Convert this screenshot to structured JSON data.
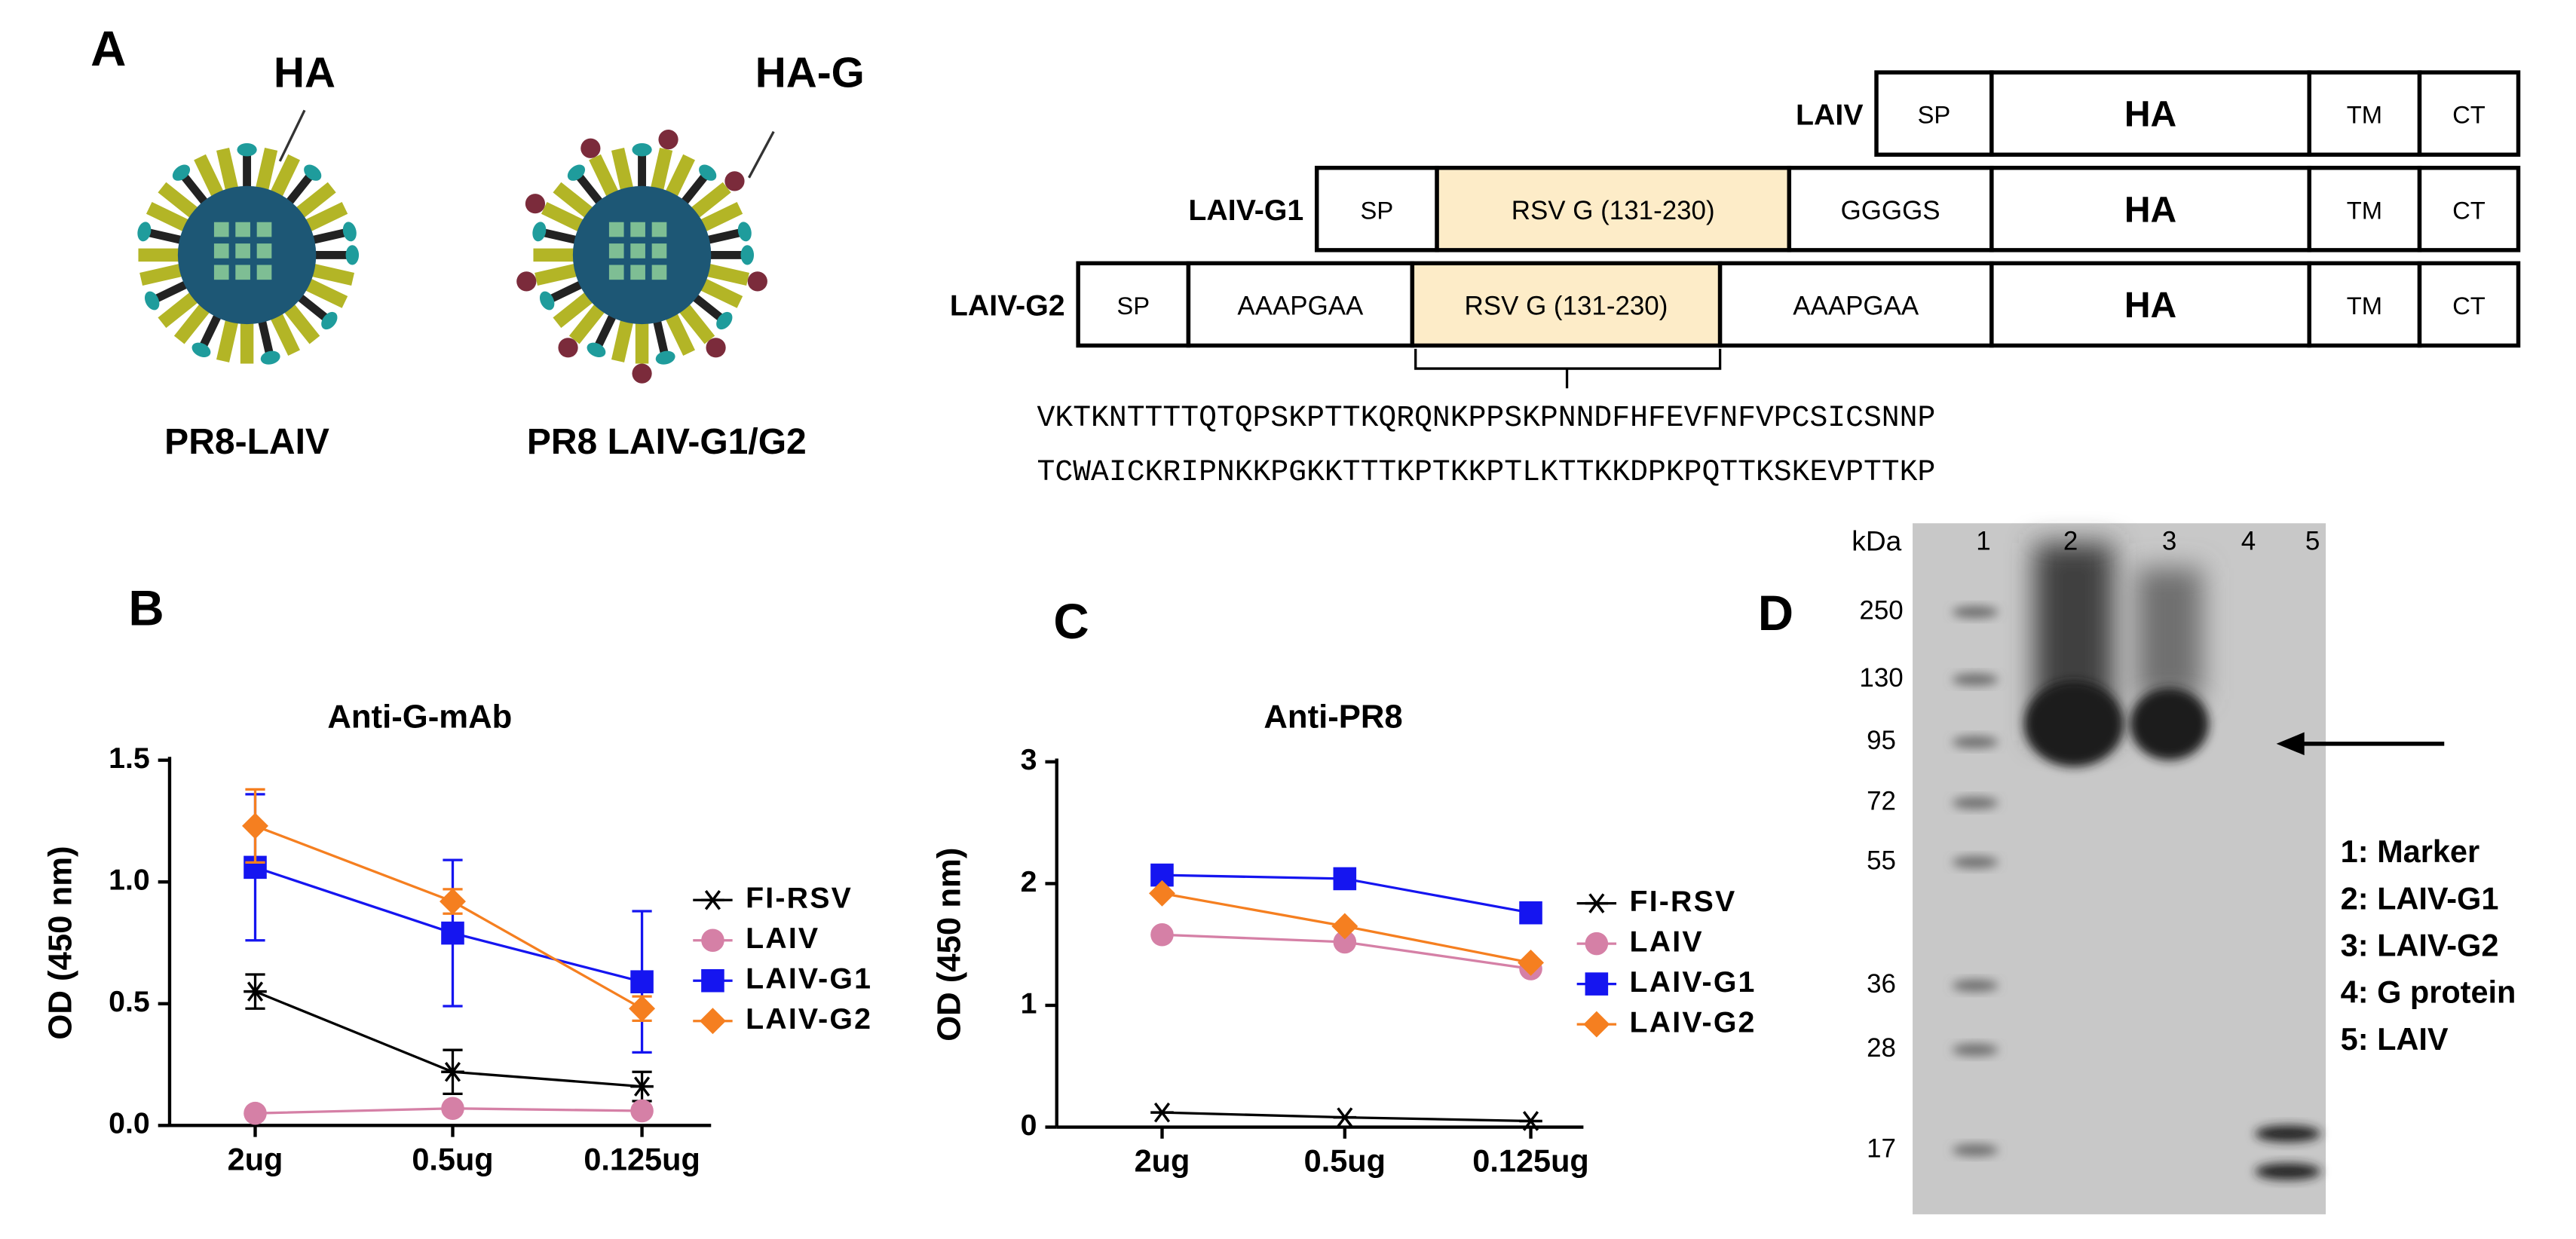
{
  "panel_labels": [
    "A",
    "B",
    "C",
    "D"
  ],
  "diagram": {
    "virus_labels": [
      "HA",
      "HA-G"
    ],
    "virus_names": [
      "PR8-LAIV",
      "PR8 LAIV-G1/G2"
    ],
    "constructs": [
      {
        "name": "LAIV",
        "segments": [
          "SP",
          "HA",
          "TM",
          "CT"
        ]
      },
      {
        "name": "LAIV-G1",
        "segments": [
          "SP",
          "RSV G (131-230)",
          "GGGGS",
          "HA",
          "TM",
          "CT"
        ]
      },
      {
        "name": "LAIV-G2",
        "segments": [
          "SP",
          "AAAPGAA",
          "RSV G (131-230)",
          "AAAPGAA",
          "HA",
          "TM",
          "CT"
        ]
      }
    ],
    "sequence": [
      "VKTKNTTTTQTQPSKPTTKQRQNKPPSKPNNDFHFEVFNFVPCSICSNNP",
      "TCWAICKRIPNKKPGKKTTTKPTKKPTLKTTKKDPKPQTTKSKEVPTTKP"
    ]
  },
  "chart_data": [
    {
      "type": "line",
      "title": "Anti-G-mAb",
      "y_label": "OD (450 nm)",
      "categories": [
        "2ug",
        "0.5ug",
        "0.125ug"
      ],
      "ylim": [
        0,
        1.5
      ],
      "yticks": [
        {
          "value": 0,
          "label": "0.0"
        },
        {
          "value": 0.5,
          "label": "0.5"
        },
        {
          "value": 1,
          "label": "1.0"
        },
        {
          "value": 1.5,
          "label": "1.5"
        }
      ],
      "series": [
        {
          "name": "FI-RSV",
          "color": "#000000",
          "marker": "star",
          "values": [
            0.55,
            0.22,
            0.16
          ],
          "errors": [
            0.07,
            0.09,
            0.06
          ]
        },
        {
          "name": "LAIV",
          "color": "#d580a6",
          "marker": "circle",
          "values": [
            0.05,
            0.07,
            0.06
          ],
          "errors": [
            0.01,
            0.01,
            0.01
          ]
        },
        {
          "name": "LAIV-G1",
          "color": "#1515f0",
          "marker": "square",
          "values": [
            1.06,
            0.79,
            0.59
          ],
          "errors": [
            0.3,
            0.3,
            0.29
          ]
        },
        {
          "name": "LAIV-G2",
          "color": "#f57f20",
          "marker": "diamond",
          "values": [
            1.23,
            0.92,
            0.48
          ],
          "errors": [
            0.15,
            0.05,
            0.05
          ]
        }
      ]
    },
    {
      "type": "line",
      "title": "Anti-PR8",
      "y_label": "OD (450 nm)",
      "categories": [
        "2ug",
        "0.5ug",
        "0.125ug"
      ],
      "ylim": [
        0,
        3
      ],
      "yticks": [
        0,
        1,
        2,
        3
      ],
      "series": [
        {
          "name": "FI-RSV",
          "color": "#000000",
          "marker": "star",
          "values": [
            0.12,
            0.08,
            0.05
          ]
        },
        {
          "name": "LAIV",
          "color": "#d580a6",
          "marker": "circle",
          "values": [
            1.58,
            1.52,
            1.3
          ]
        },
        {
          "name": "LAIV-G1",
          "color": "#1515f0",
          "marker": "square",
          "values": [
            2.07,
            2.04,
            1.76
          ]
        },
        {
          "name": "LAIV-G2",
          "color": "#f57f20",
          "marker": "diamond",
          "values": [
            1.92,
            1.65,
            1.35
          ]
        }
      ]
    }
  ],
  "blot": {
    "unit_label": "kDa",
    "lanes": [
      "1",
      "2",
      "3",
      "4",
      "5"
    ],
    "markers": [
      "250",
      "130",
      "95",
      "72",
      "55",
      "36",
      "28",
      "17"
    ],
    "legend": [
      "1: Marker",
      "2: LAIV-G1",
      "3: LAIV-G2",
      "4: G protein",
      "5: LAIV"
    ]
  }
}
